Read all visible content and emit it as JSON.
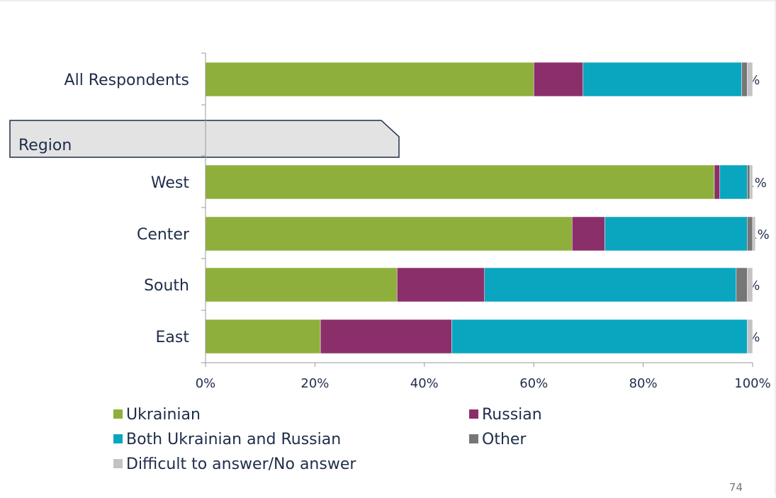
{
  "page_number": "74",
  "region_header": "Region",
  "chart_data": {
    "type": "bar",
    "orientation": "horizontal",
    "stacked": true,
    "categories": [
      "All Respondents",
      "West",
      "Center",
      "South",
      "East"
    ],
    "series": [
      {
        "name": "Ukrainian",
        "color": "#8faf3c",
        "values": [
          60,
          93,
          67,
          35,
          21
        ],
        "labels": [
          "60%",
          "93%",
          "67%",
          "35%",
          "21%"
        ]
      },
      {
        "name": "Russian",
        "color": "#8b2f6b",
        "values": [
          9,
          1,
          6,
          16,
          24
        ],
        "labels": [
          "9%",
          "1%",
          "6%",
          "16%",
          "24%"
        ]
      },
      {
        "name": "Both Ukrainian and Russian",
        "color": "#0aa6bf",
        "values": [
          29,
          5,
          26,
          46,
          54
        ],
        "labels": [
          "29%",
          "5%",
          "26%",
          "46%",
          "54%"
        ]
      },
      {
        "name": "Other",
        "color": "#767676",
        "values": [
          1,
          0.5,
          1,
          2,
          0
        ],
        "labels": [
          "1%",
          "<1%",
          "1%",
          "2%",
          ""
        ]
      },
      {
        "name": "Difficult to answer/No answer",
        "color": "#c3c3c3",
        "values": [
          1,
          0.5,
          0.5,
          1,
          1
        ],
        "labels": [
          "1%",
          "<1%",
          "<1%",
          "1%",
          "1%"
        ]
      }
    ],
    "xlim": [
      0,
      100
    ],
    "xticks": [
      "0%",
      "20%",
      "40%",
      "60%",
      "80%",
      "100%"
    ],
    "grid": false,
    "legend": "bottom"
  }
}
